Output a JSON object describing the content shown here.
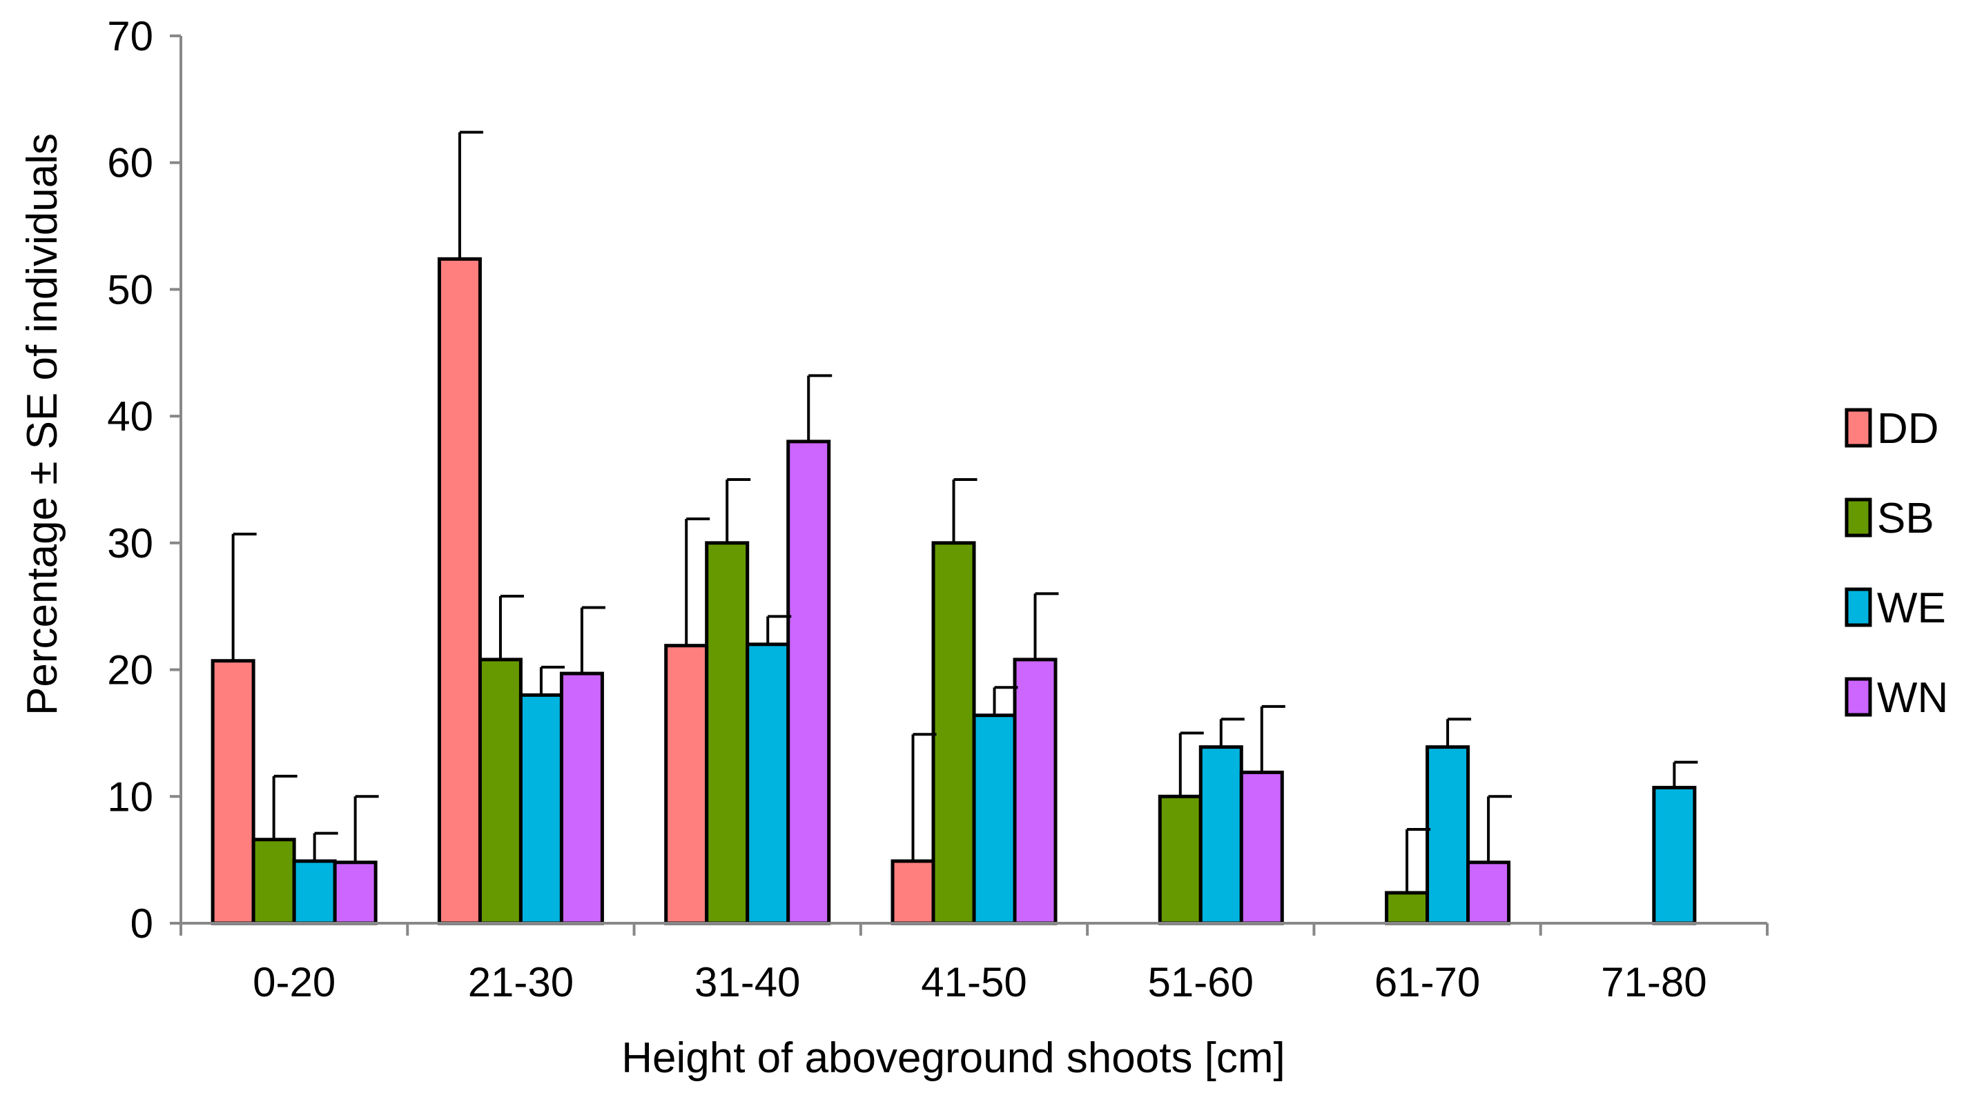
{
  "chart_data": {
    "type": "bar",
    "title": "",
    "xlabel": "Height of aboveground shoots [cm]",
    "ylabel": "Percentage ± SE of individuals",
    "ylim": [
      0,
      70
    ],
    "yticks": [
      0,
      10,
      20,
      30,
      40,
      50,
      60,
      70
    ],
    "categories": [
      "0-20",
      "21-30",
      "31-40",
      "41-50",
      "51-60",
      "61-70",
      "71-80"
    ],
    "legend_position": "right",
    "series": [
      {
        "name": "DD",
        "color": "#FF7F7F",
        "values": [
          20.7,
          52.4,
          21.9,
          4.9,
          0,
          0,
          0
        ],
        "errors": [
          10.0,
          10.0,
          10.0,
          10.0,
          0,
          0,
          0
        ]
      },
      {
        "name": "SB",
        "color": "#669900",
        "values": [
          6.6,
          20.8,
          30.0,
          30.0,
          10.0,
          2.4,
          0
        ],
        "errors": [
          5.0,
          5.0,
          5.0,
          5.0,
          5.0,
          5.0,
          0
        ]
      },
      {
        "name": "WE",
        "color": "#00B4E0",
        "values": [
          4.9,
          18.0,
          22.0,
          16.4,
          13.9,
          13.9,
          10.7
        ],
        "errors": [
          2.2,
          2.2,
          2.2,
          2.2,
          2.2,
          2.2,
          2.0
        ]
      },
      {
        "name": "WN",
        "color": "#CC66FF",
        "values": [
          4.8,
          19.7,
          38.0,
          20.8,
          11.9,
          4.8,
          0
        ],
        "errors": [
          5.2,
          5.2,
          5.2,
          5.2,
          5.2,
          5.2,
          0
        ]
      }
    ]
  }
}
